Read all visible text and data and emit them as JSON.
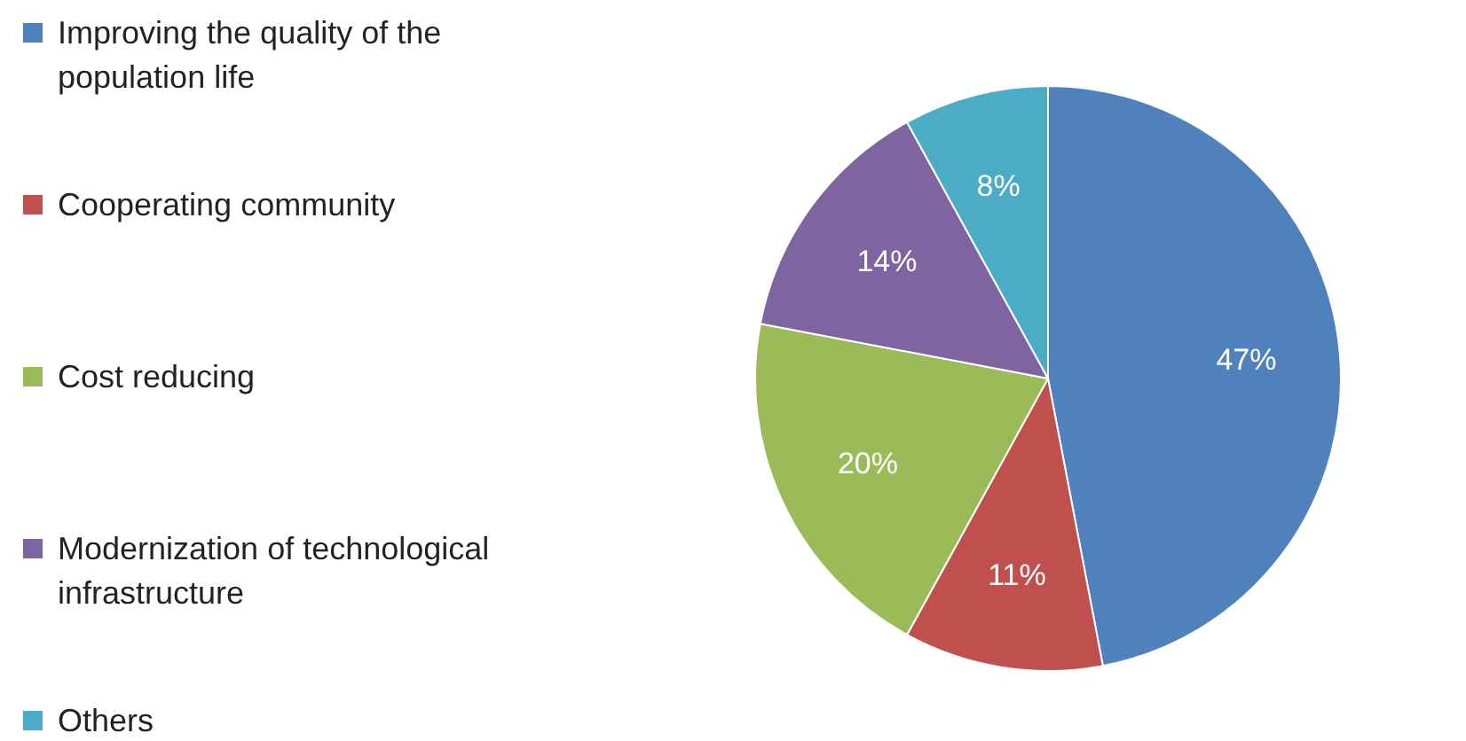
{
  "chart_data": {
    "type": "pie",
    "categories": [
      "Improving the quality of the population life",
      "Cooperating community",
      "Cost reducing",
      "Modernization of technological infrastructure",
      "Others"
    ],
    "values": [
      47,
      11,
      20,
      14,
      8
    ],
    "colors": [
      "#4f81bd",
      "#c0504d",
      "#9bbb59",
      "#8064a2",
      "#4bacc6"
    ],
    "value_labels": [
      "47%",
      "11%",
      "20%",
      "14%",
      "8%"
    ],
    "legend": "left"
  }
}
